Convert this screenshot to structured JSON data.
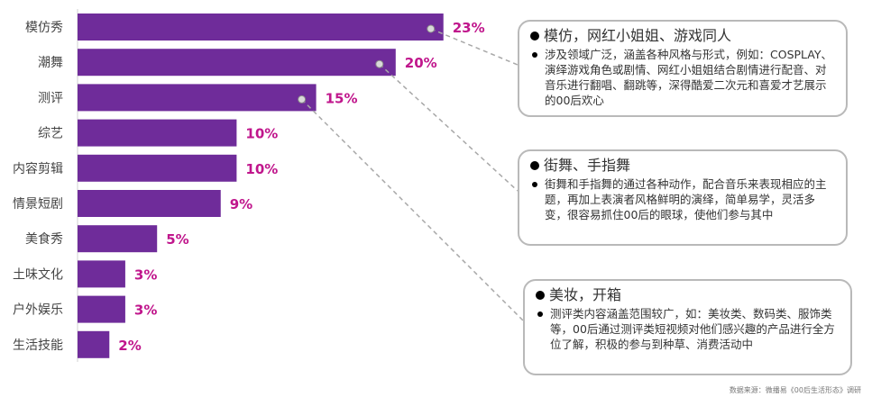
{
  "chart_data": {
    "type": "bar",
    "orientation": "horizontal",
    "categories": [
      "模仿秀",
      "潮舞",
      "测评",
      "综艺",
      "内容剪辑",
      "情景短剧",
      "美食秀",
      "土味文化",
      "户外娱乐",
      "生活技能"
    ],
    "values": [
      23,
      20,
      15,
      10,
      10,
      9,
      5,
      3,
      3,
      2
    ],
    "value_labels": [
      "23%",
      "20%",
      "15%",
      "10%",
      "10%",
      "9%",
      "5%",
      "3%",
      "3%",
      "2%"
    ],
    "xlim": [
      0,
      25
    ],
    "grid": false,
    "legend": "none"
  },
  "callouts": [
    {
      "title": "模仿，网红小姐姐、游戏同人",
      "body": "涉及领域广泛，涵盖各种风格与形式，例如：COSPLAY、演绎游戏角色或剧情、网红小姐姐结合剧情进行配音、对音乐进行翻唱、翻跳等，深得酷爱二次元和喜爱才艺展示的00后欢心",
      "category": "模仿秀"
    },
    {
      "title": "街舞、手指舞",
      "body": "街舞和手指舞的通过各种动作，配合音乐来表现相应的主题，再加上表演者风格鲜明的演绎，简单易学，灵活多变，很容易抓住00后的眼球，使他们参与其中",
      "category": "潮舞"
    },
    {
      "title": "美妆，开箱",
      "body": "测评类内容涵盖范围较广，如：美妆类、数码类、服饰类等，00后通过测评类短视频对他们感兴趣的产品进行全方位了解，积极的参与到种草、消费活动中",
      "category": "测评"
    }
  ],
  "source": "数据来源：微播易《00后生活形态》调研",
  "colors": {
    "bar": "#6f2c9a",
    "value_label": "#c0168c",
    "connector": "#a8a8a8",
    "box_border": "#b9b9b9"
  }
}
